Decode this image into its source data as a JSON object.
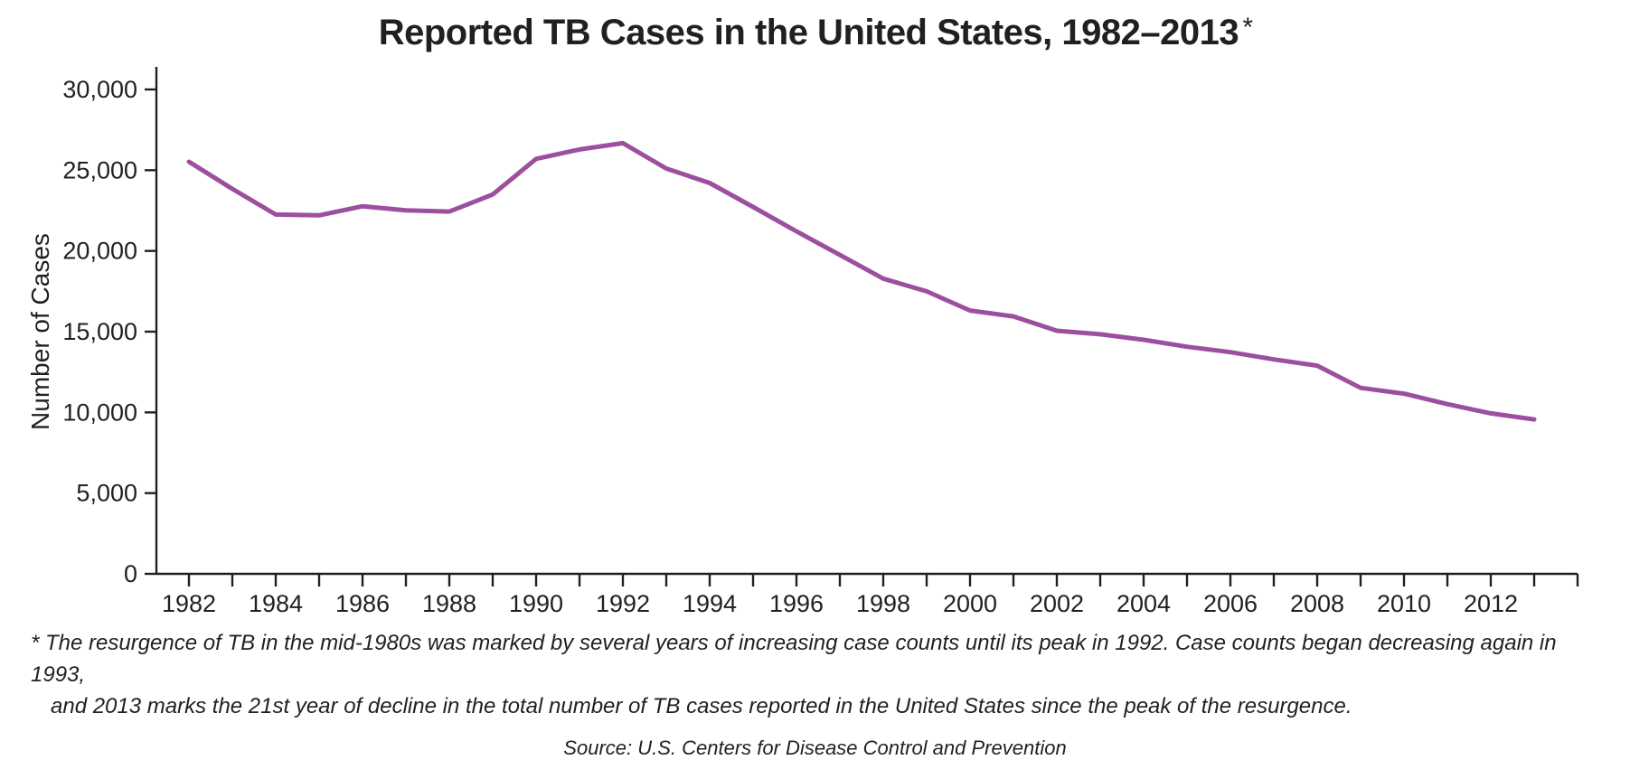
{
  "title": {
    "main": "Reported TB Cases in the United States, 1982–2013",
    "asterisk": "*"
  },
  "footnote": {
    "lines": [
      "* The resurgence of TB in the mid-1980s was marked by several years of increasing case counts until its peak in 1992. Case counts began decreasing again in 1993,",
      "and 2013 marks the 21st year of decline in the total number of TB cases reported in the United States since the peak of the resurgence."
    ]
  },
  "source": "Source: U.S. Centers for Disease Control and Prevention",
  "chart_data": {
    "type": "line",
    "title": "Reported TB Cases in the United States, 1982–2013*",
    "xlabel": "",
    "ylabel": "Number of Cases",
    "x": [
      1982,
      1983,
      1984,
      1985,
      1986,
      1987,
      1988,
      1989,
      1990,
      1991,
      1992,
      1993,
      1994,
      1995,
      1996,
      1997,
      1998,
      1999,
      2000,
      2001,
      2002,
      2003,
      2004,
      2005,
      2006,
      2007,
      2008,
      2009,
      2010,
      2011,
      2012,
      2013
    ],
    "series": [
      {
        "name": "Reported TB cases",
        "values": [
          25520,
          23846,
          22255,
          22201,
          22768,
          22517,
          22436,
          23495,
          25701,
          26283,
          26673,
          25102,
          24206,
          22726,
          21210,
          19751,
          18286,
          17499,
          16308,
          15945,
          15055,
          14835,
          14499,
          14063,
          13728,
          13281,
          12895,
          11520,
          11161,
          10510,
          9940,
          9565
        ]
      }
    ],
    "ylim": [
      0,
      30000
    ],
    "y_ticks": [
      0,
      5000,
      10000,
      15000,
      20000,
      25000,
      30000
    ],
    "x_tick_labels": [
      1982,
      1984,
      1986,
      1988,
      1990,
      1992,
      1994,
      1996,
      1998,
      2000,
      2002,
      2004,
      2006,
      2008,
      2010,
      2012
    ],
    "line_color": "#9c4f9f",
    "axis_color": "#231f20",
    "grid": false,
    "legend": "none"
  }
}
